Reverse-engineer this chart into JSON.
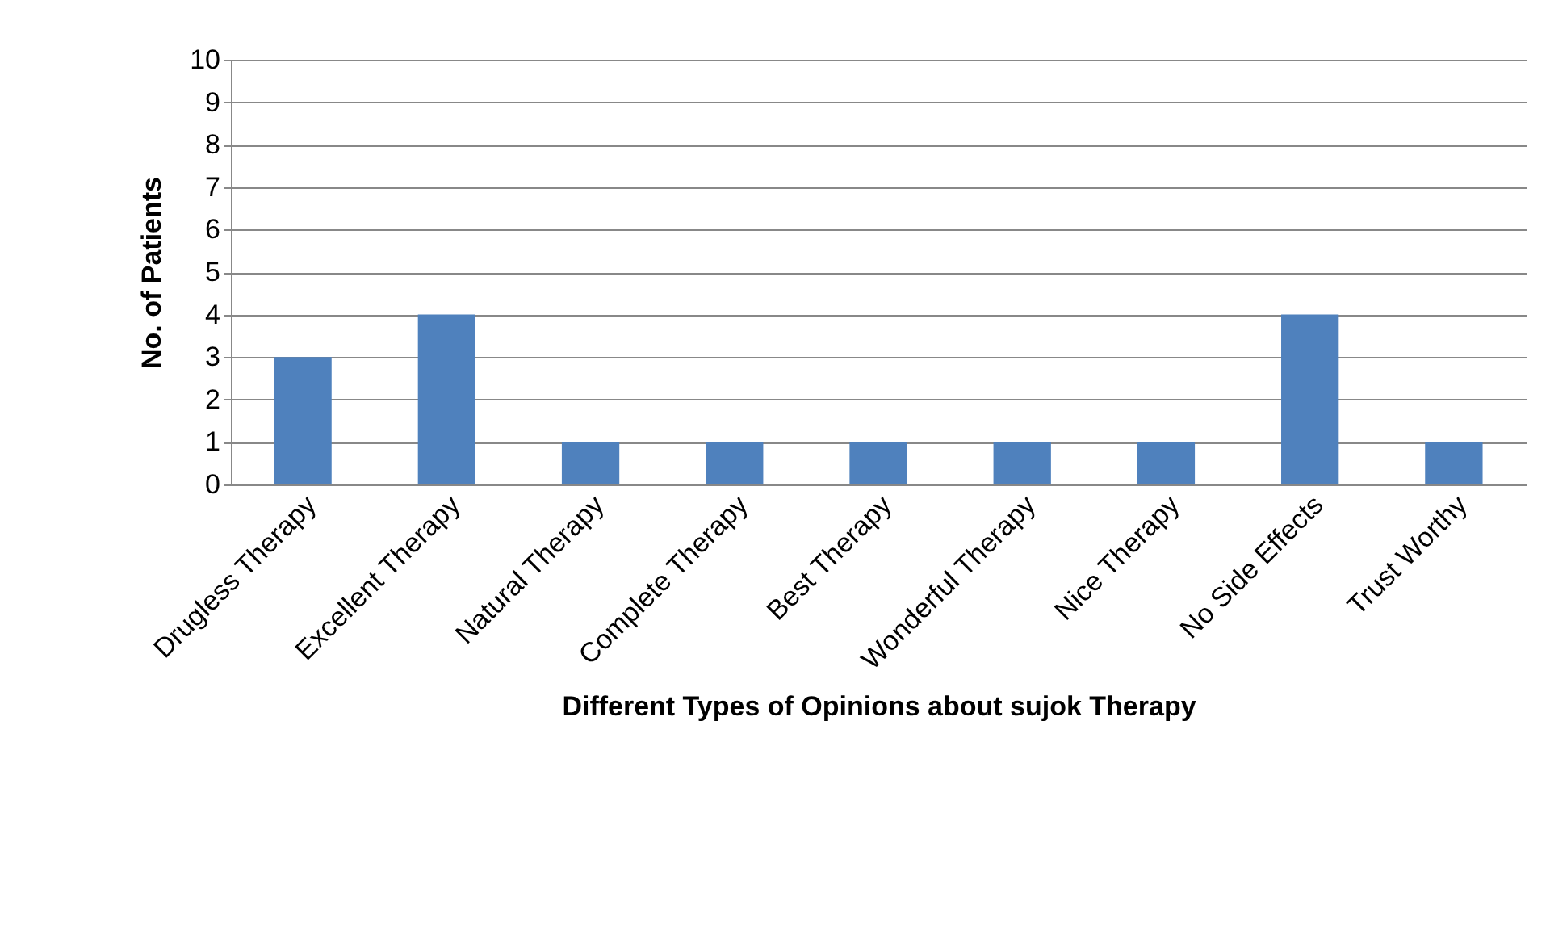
{
  "chart_data": {
    "type": "bar",
    "xlabel": "Different Types of Opinions about sujok Therapy",
    "ylabel": "No. of Patients",
    "categories": [
      "Drugless Therapy",
      "Excellent Therapy",
      "Natural Therapy",
      "Complete Therapy",
      "Best Therapy",
      "Wonderful Therapy",
      "Nice Therapy",
      "No Side Effects",
      "Trust Worthy"
    ],
    "values": [
      3,
      4,
      1,
      1,
      1,
      1,
      1,
      4,
      1
    ],
    "color": "#4f81bd",
    "ylim": [
      0,
      10
    ],
    "yticks": [
      0,
      1,
      2,
      3,
      4,
      5,
      6,
      7,
      8,
      9,
      10
    ],
    "grid": "y"
  }
}
